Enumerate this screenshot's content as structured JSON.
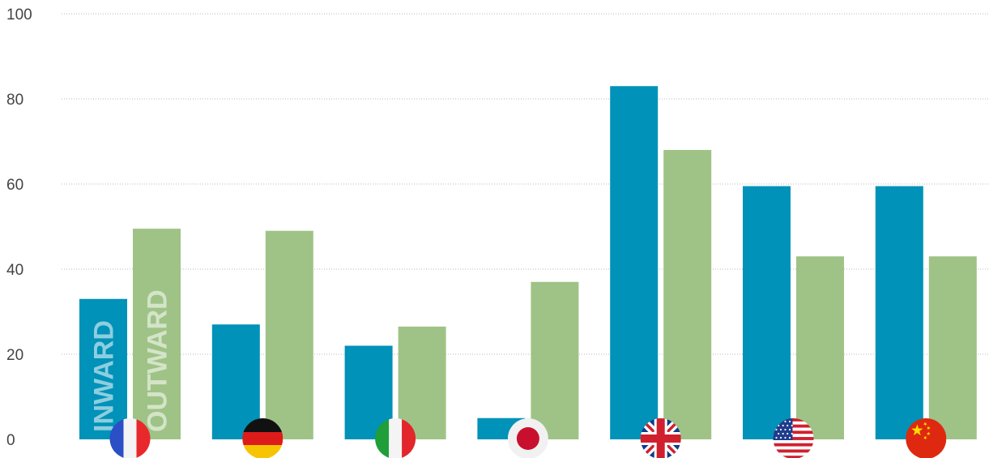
{
  "chart_data": {
    "type": "bar",
    "ylim": [
      0,
      100
    ],
    "yticks": [
      "0",
      "20",
      "40",
      "60",
      "80",
      "100"
    ],
    "grid": true,
    "categories": [
      "france-flag",
      "germany-flag",
      "italy-flag",
      "japan-flag",
      "uk-flag",
      "usa-flag",
      "china-flag"
    ],
    "series": [
      {
        "name": "INWARD",
        "color": "#0092b8",
        "values": [
          33,
          27,
          22,
          5,
          83,
          59.5,
          59.5
        ]
      },
      {
        "name": "OUTWARD",
        "color": "#9fc386",
        "values": [
          49.5,
          49,
          26.5,
          37,
          68,
          43,
          43
        ]
      }
    ]
  }
}
